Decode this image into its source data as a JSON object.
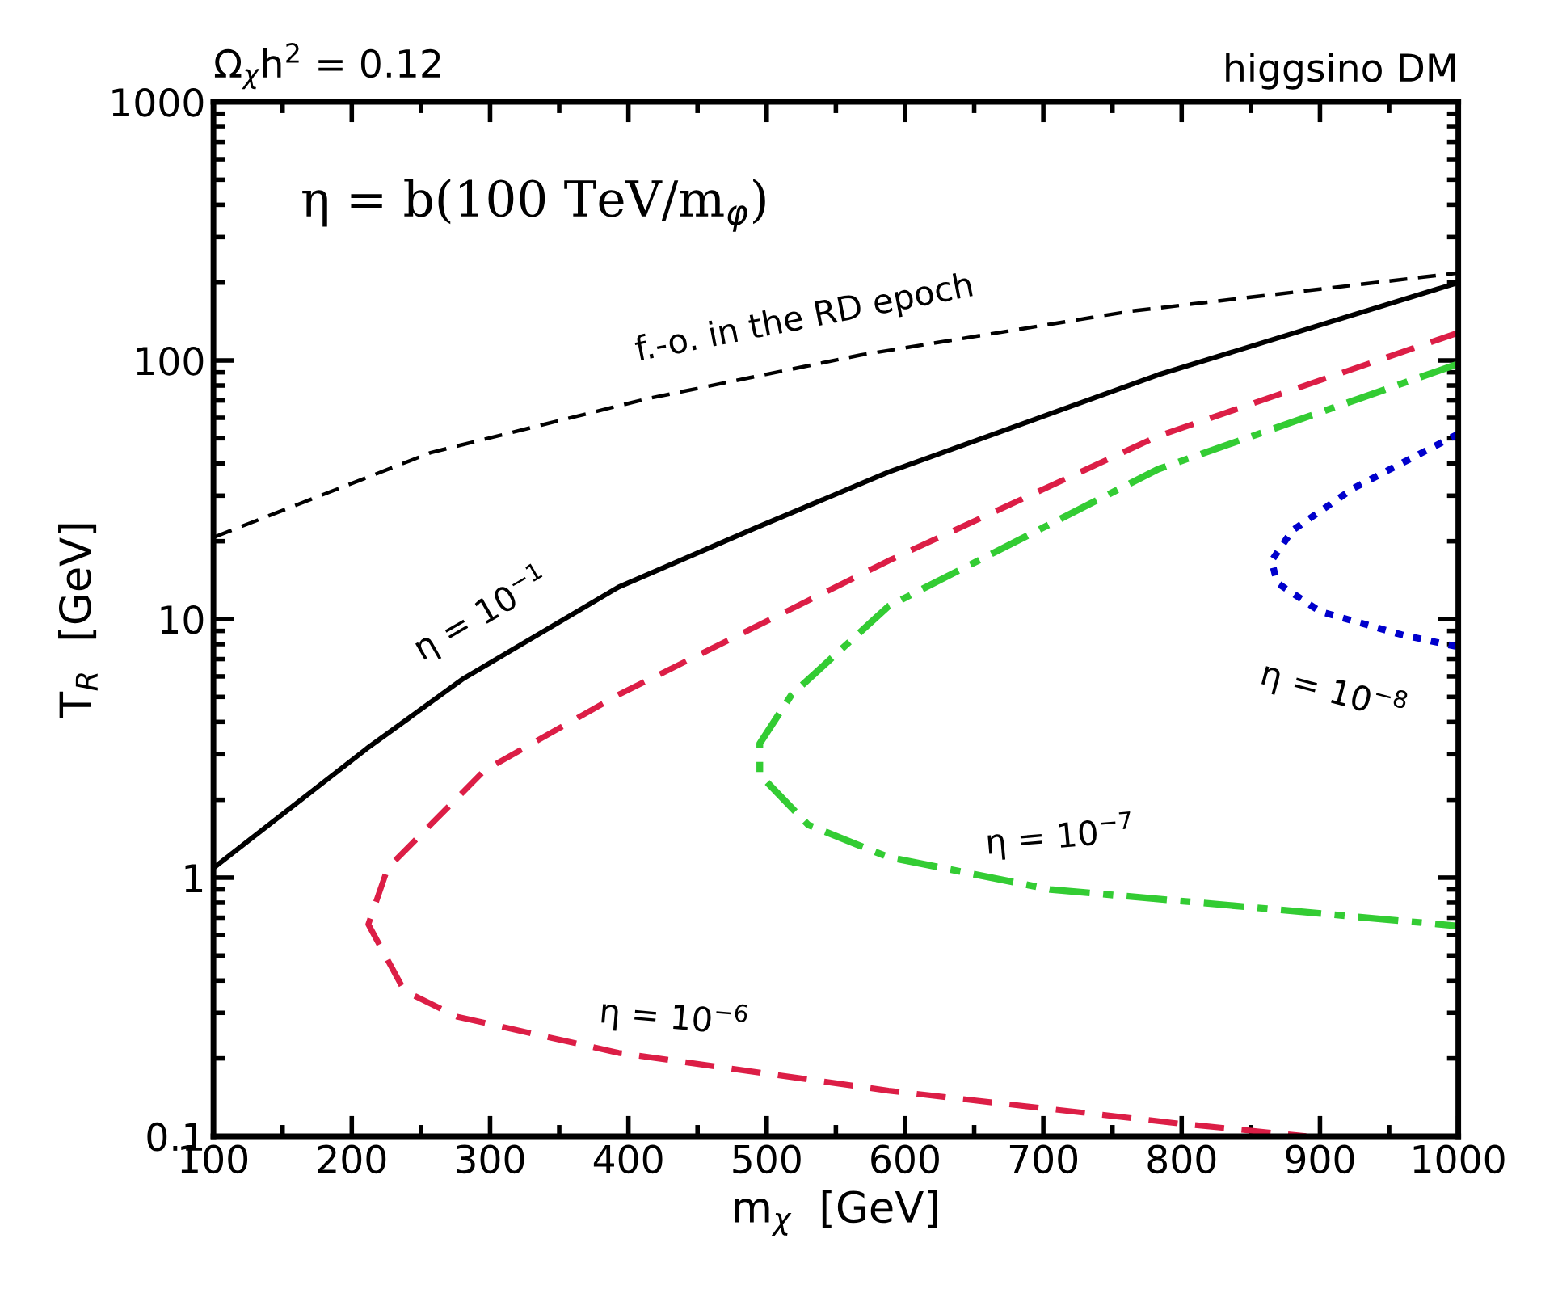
{
  "chart_data": {
    "type": "line",
    "xlabel": "m$_{χ}$  [GeV]",
    "ylabel": "T$_{R}$  [GeV]",
    "xlim": [
      100,
      1000
    ],
    "xticks": [
      100,
      200,
      300,
      400,
      500,
      600,
      700,
      800,
      900,
      1000
    ],
    "ylim": [
      0.1,
      1000
    ],
    "yticks": [
      {
        "value": 0.1,
        "label": "0.1"
      },
      1,
      10,
      100,
      1000
    ],
    "log": "y",
    "grid": false,
    "legend": false,
    "series": [
      {
        "color": "#000000",
        "line_style": "dashed",
        "x": [
          101,
          257,
          413,
          568,
          763,
          1000
        ],
        "values": [
          20.8,
          44,
          71,
          105,
          155,
          218
        ]
      },
      {
        "color": "#000000",
        "line_style": "solid",
        "x": [
          100,
          211,
          281,
          393,
          491,
          588,
          783,
          1000
        ],
        "values": [
          1.09,
          3.16,
          5.9,
          13.3,
          22.4,
          37,
          88,
          200
        ]
      },
      {
        "color": "#dc1e46",
        "line_style": "dashed",
        "x": [
          1000,
          783,
          588,
          393,
          296,
          226,
          212,
          238,
          276,
          393,
          588,
          798,
          890
        ],
        "values": [
          128,
          51,
          16.8,
          5.1,
          2.6,
          1.09,
          0.66,
          0.365,
          0.29,
          0.21,
          0.15,
          0.112,
          0.1
        ]
      },
      {
        "color": "#33cc33",
        "line_style": "dashdot",
        "x": [
          1000,
          783,
          588,
          518,
          495,
          495,
          530,
          588,
          705,
          860,
          1000
        ],
        "values": [
          97,
          38,
          11.2,
          5.1,
          3.3,
          2.5,
          1.6,
          1.2,
          0.9,
          0.76,
          0.65
        ]
      },
      {
        "color": "#0000cc",
        "line_style": "dotted",
        "x": [
          1000,
          924,
          880,
          865,
          869,
          900,
          959,
          1000
        ],
        "values": [
          52,
          32,
          22,
          16.8,
          13.8,
          10.7,
          8.7,
          7.8
        ]
      }
    ],
    "annotations": [
      "Ω$_{χ}$h$^{2}$ = 0.12",
      "higgsino DM",
      "η = b(100 TeV/m$_{φ}$)",
      "f.-o. in the RD epoch",
      "η = 10$^{−1}$",
      "η = 10$^{−6}$",
      "η = 10$^{−7}$",
      "η = 10$^{−8}$"
    ]
  }
}
